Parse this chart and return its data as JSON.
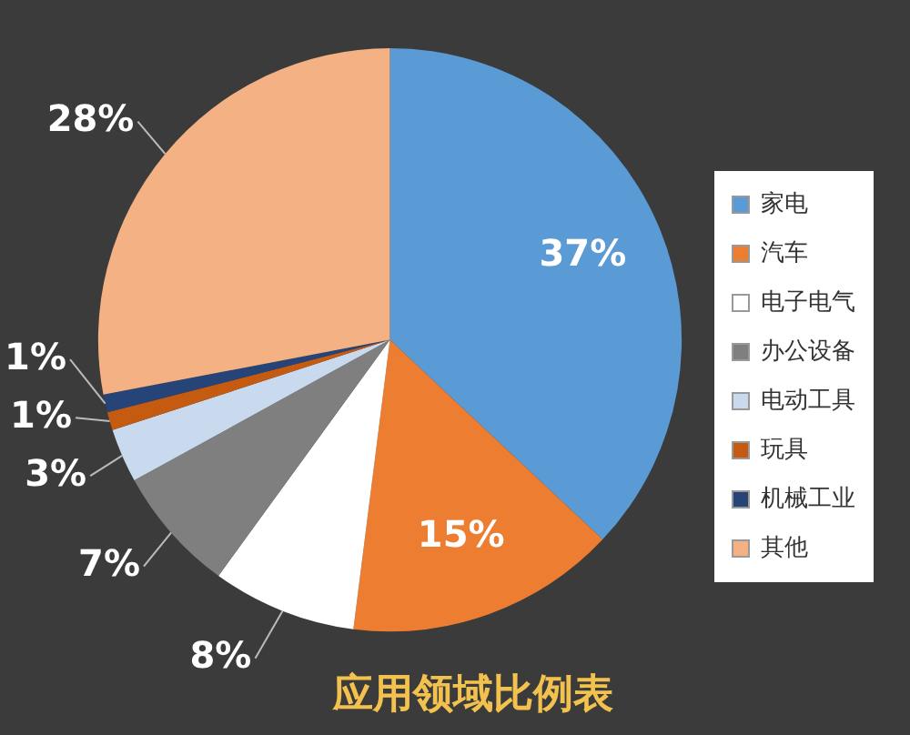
{
  "chart_data": {
    "type": "pie",
    "title": "应用领域比例表",
    "categories": [
      "家电",
      "汽车",
      "电子电气",
      "办公设备",
      "电动工具",
      "玩具",
      "机械工业",
      "其他"
    ],
    "values": [
      37,
      15,
      8,
      7,
      3,
      1,
      1,
      28
    ],
    "value_labels": [
      "37%",
      "15%",
      "8%",
      "7%",
      "3%",
      "1%",
      "1%",
      "28%"
    ],
    "colors": [
      "#5b9bd5",
      "#ed7d31",
      "#ffffff",
      "#7f7f7f",
      "#c9d9ee",
      "#c55a11",
      "#264478",
      "#f4b183"
    ],
    "legend": "right"
  }
}
